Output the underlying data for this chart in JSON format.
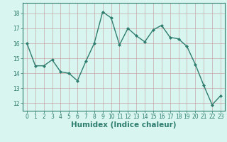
{
  "x": [
    0,
    1,
    2,
    3,
    4,
    5,
    6,
    7,
    8,
    9,
    10,
    11,
    12,
    13,
    14,
    15,
    16,
    17,
    18,
    19,
    20,
    21,
    22,
    23
  ],
  "y": [
    16.0,
    14.5,
    14.5,
    14.9,
    14.1,
    14.0,
    13.5,
    14.8,
    16.0,
    18.1,
    17.7,
    15.9,
    17.0,
    16.5,
    16.1,
    16.9,
    17.2,
    16.4,
    16.3,
    15.8,
    14.6,
    13.2,
    11.9,
    12.5
  ],
  "line_color": "#2e7d6e",
  "marker": "D",
  "marker_size": 2.0,
  "line_width": 1.0,
  "bg_color": "#d8f5f0",
  "grid_color": "#c8a8a8",
  "tick_color": "#2e7d6e",
  "xlabel": "Humidex (Indice chaleur)",
  "xlabel_fontsize": 7.5,
  "xlabel_color": "#2e7d6e",
  "tick_fontsize": 5.5,
  "ylim": [
    11.5,
    18.7
  ],
  "yticks": [
    12,
    13,
    14,
    15,
    16,
    17,
    18
  ],
  "xticks": [
    0,
    1,
    2,
    3,
    4,
    5,
    6,
    7,
    8,
    9,
    10,
    11,
    12,
    13,
    14,
    15,
    16,
    17,
    18,
    19,
    20,
    21,
    22,
    23
  ]
}
